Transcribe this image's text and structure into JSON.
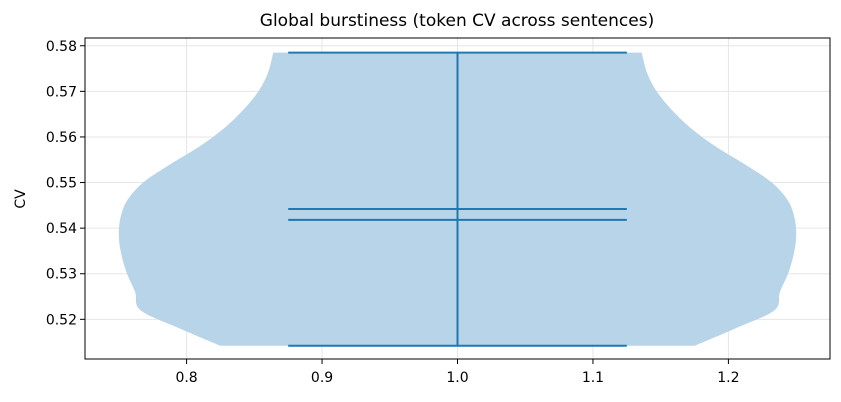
{
  "chart_data": {
    "type": "violin",
    "title": "Global burstiness (token CV across sentences)",
    "xlabel": "",
    "ylabel": "CV",
    "xlim": [
      0.725,
      1.275
    ],
    "ylim": [
      0.5113,
      0.5817
    ],
    "x_ticks": [
      0.8,
      0.9,
      1.0,
      1.1,
      1.2
    ],
    "x_tick_labels": [
      "0.8",
      "0.9",
      "1.0",
      "1.1",
      "1.2"
    ],
    "y_ticks": [
      0.52,
      0.53,
      0.54,
      0.55,
      0.56,
      0.57,
      0.58
    ],
    "y_tick_labels": [
      "0.52",
      "0.53",
      "0.54",
      "0.55",
      "0.56",
      "0.57",
      "0.58"
    ],
    "grid": true,
    "position": 1.0,
    "summary": {
      "min": 0.5142,
      "max": 0.5785,
      "mean": 0.5442,
      "median": 0.5418
    },
    "density_profile": {
      "y": [
        0.5142,
        0.518,
        0.522,
        0.526,
        0.53,
        0.534,
        0.538,
        0.542,
        0.546,
        0.55,
        0.554,
        0.558,
        0.562,
        0.566,
        0.57,
        0.574,
        0.5785
      ],
      "half_width": [
        0.175,
        0.205,
        0.234,
        0.238,
        0.244,
        0.248,
        0.25,
        0.249,
        0.244,
        0.232,
        0.212,
        0.19,
        0.172,
        0.158,
        0.147,
        0.14,
        0.136
      ]
    },
    "violin_color": "#b8d4e8",
    "line_color": "#1f77b4"
  }
}
